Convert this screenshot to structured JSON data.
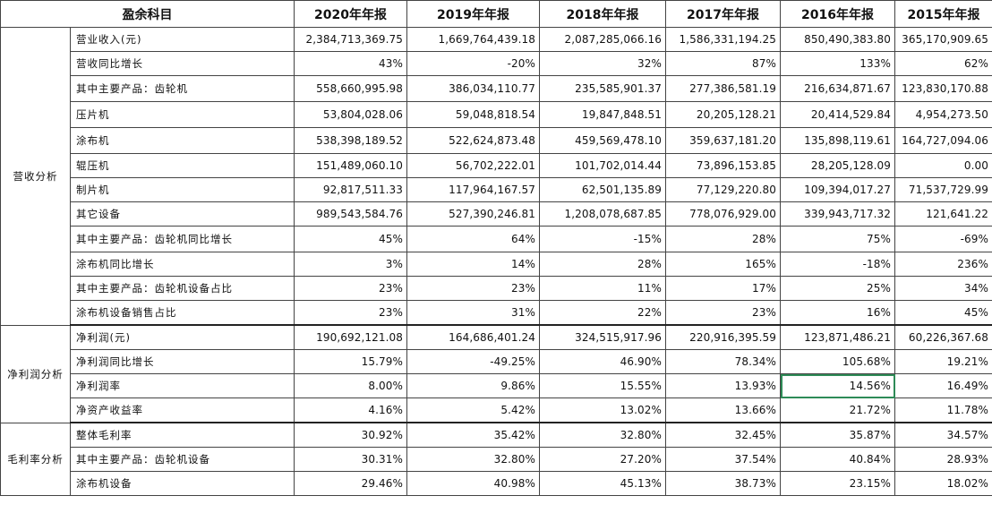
{
  "header": {
    "item": "盈余科目",
    "years": [
      "2020年年报",
      "2019年年报",
      "2018年年报",
      "2017年年报",
      "2016年年报",
      "2015年年报"
    ]
  },
  "sections": [
    {
      "category": "营收分析",
      "rows": [
        {
          "label": "营业收入(元)",
          "values": [
            "2,384,713,369.75",
            "1,669,764,439.18",
            "2,087,285,066.16",
            "1,586,331,194.25",
            "850,490,383.80",
            "365,170,909.65"
          ]
        },
        {
          "label": "营收同比增长",
          "values": [
            "43%",
            "-20%",
            "32%",
            "87%",
            "133%",
            "62%"
          ]
        },
        {
          "label": "其中主要产品：齿轮机",
          "values": [
            "558,660,995.98",
            "386,034,110.77",
            "235,585,901.37",
            "277,386,581.19",
            "216,634,871.67",
            "123,830,170.88"
          ]
        },
        {
          "label": "压片机",
          "values": [
            "53,804,028.06",
            "59,048,818.54",
            "19,847,848.51",
            "20,205,128.21",
            "20,414,529.84",
            "4,954,273.50"
          ]
        },
        {
          "label": "涂布机",
          "values": [
            "538,398,189.52",
            "522,624,873.48",
            "459,569,478.10",
            "359,637,181.20",
            "135,898,119.61",
            "164,727,094.06"
          ]
        },
        {
          "label": "辊压机",
          "values": [
            "151,489,060.10",
            "56,702,222.01",
            "101,702,014.44",
            "73,896,153.85",
            "28,205,128.09",
            "0.00"
          ]
        },
        {
          "label": "制片机",
          "values": [
            "92,817,511.33",
            "117,964,167.57",
            "62,501,135.89",
            "77,129,220.80",
            "109,394,017.27",
            "71,537,729.99"
          ]
        },
        {
          "label": "其它设备",
          "values": [
            "989,543,584.76",
            "527,390,246.81",
            "1,208,078,687.85",
            "778,076,929.00",
            "339,943,717.32",
            "121,641.22"
          ]
        },
        {
          "label": "其中主要产品：齿轮机同比增长",
          "values": [
            "45%",
            "64%",
            "-15%",
            "28%",
            "75%",
            "-69%"
          ]
        },
        {
          "label": "涂布机同比增长",
          "values": [
            "3%",
            "14%",
            "28%",
            "165%",
            "-18%",
            "236%"
          ]
        },
        {
          "label": "其中主要产品：齿轮机设备占比",
          "values": [
            "23%",
            "23%",
            "11%",
            "17%",
            "25%",
            "34%"
          ]
        },
        {
          "label": "涂布机设备销售占比",
          "values": [
            "23%",
            "31%",
            "22%",
            "23%",
            "16%",
            "45%"
          ]
        }
      ]
    },
    {
      "category": "净利润分析",
      "rows": [
        {
          "label": "净利润(元)",
          "values": [
            "190,692,121.08",
            "164,686,401.24",
            "324,515,917.96",
            "220,916,395.59",
            "123,871,486.21",
            "60,226,367.68"
          ]
        },
        {
          "label": "净利润同比增长",
          "values": [
            "15.79%",
            "-49.25%",
            "46.90%",
            "78.34%",
            "105.68%",
            "19.21%"
          ]
        },
        {
          "label": "净利润率",
          "values": [
            "8.00%",
            "9.86%",
            "15.55%",
            "13.93%",
            "14.56%",
            "16.49%"
          ]
        },
        {
          "label": "净资产收益率",
          "values": [
            "4.16%",
            "5.42%",
            "13.02%",
            "13.66%",
            "21.72%",
            "11.78%"
          ]
        }
      ]
    },
    {
      "category": "毛利率分析",
      "rows": [
        {
          "label": "整体毛利率",
          "values": [
            "30.92%",
            "35.42%",
            "32.80%",
            "32.45%",
            "35.87%",
            "34.57%"
          ]
        },
        {
          "label": "其中主要产品：齿轮机设备",
          "values": [
            "30.31%",
            "32.80%",
            "27.20%",
            "37.54%",
            "40.84%",
            "28.93%"
          ]
        },
        {
          "label": "涂布机设备",
          "values": [
            "29.46%",
            "40.98%",
            "45.13%",
            "38.73%",
            "23.15%",
            "18.02%"
          ]
        }
      ]
    }
  ]
}
